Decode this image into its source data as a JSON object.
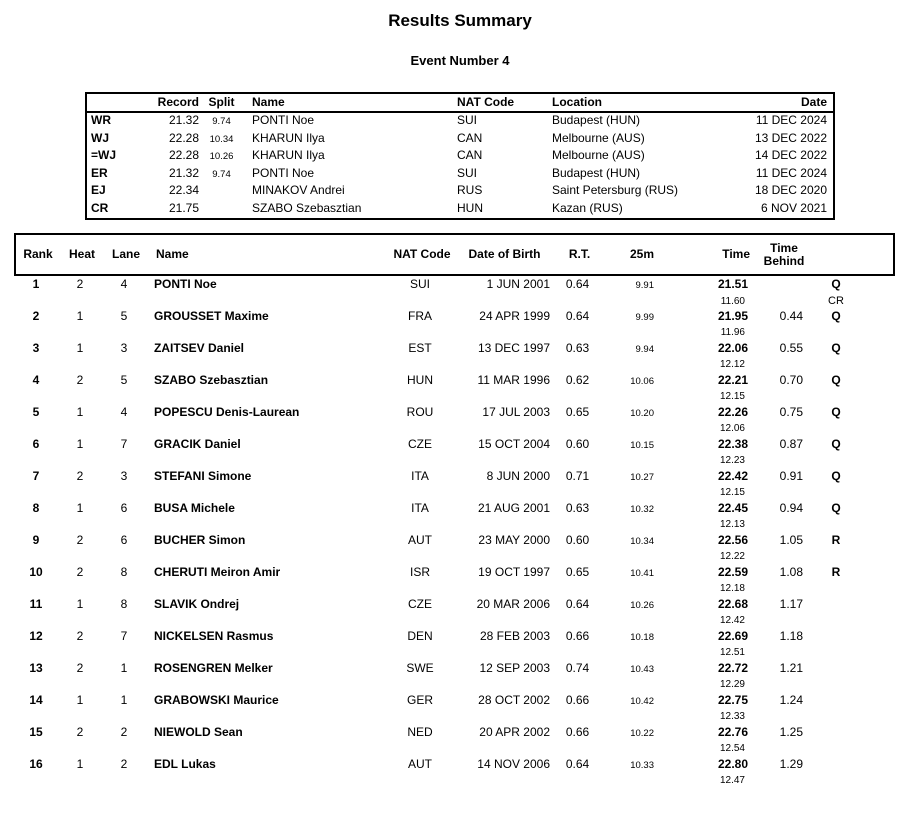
{
  "page": {
    "title": "Results Summary",
    "subtitle": "Event Number 4"
  },
  "colors": {
    "background": "#ffffff",
    "text": "#000000",
    "border": "#000000"
  },
  "records_table": {
    "headers": {
      "record": "Record",
      "split": "Split",
      "name": "Name",
      "nat_code": "NAT Code",
      "location": "Location",
      "date": "Date"
    },
    "rows": [
      {
        "tag": "WR",
        "record": "21.32",
        "split": "9.74",
        "name": "PONTI Noe",
        "nat": "SUI",
        "location": "Budapest (HUN)",
        "date": "11 DEC 2024"
      },
      {
        "tag": "WJ",
        "record": "22.28",
        "split": "10.34",
        "name": "KHARUN Ilya",
        "nat": "CAN",
        "location": "Melbourne (AUS)",
        "date": "13 DEC 2022"
      },
      {
        "tag": "=WJ",
        "record": "22.28",
        "split": "10.26",
        "name": "KHARUN Ilya",
        "nat": "CAN",
        "location": "Melbourne (AUS)",
        "date": "14 DEC 2022"
      },
      {
        "tag": "ER",
        "record": "21.32",
        "split": "9.74",
        "name": "PONTI Noe",
        "nat": "SUI",
        "location": "Budapest (HUN)",
        "date": "11 DEC 2024"
      },
      {
        "tag": "EJ",
        "record": "22.34",
        "split": "",
        "name": "MINAKOV Andrei",
        "nat": "RUS",
        "location": "Saint Petersburg (RUS)",
        "date": "18 DEC 2020"
      },
      {
        "tag": "CR",
        "record": "21.75",
        "split": "",
        "name": "SZABO Szebasztian",
        "nat": "HUN",
        "location": "Kazan (RUS)",
        "date": "6 NOV 2021"
      }
    ]
  },
  "results_table": {
    "headers": {
      "rank": "Rank",
      "heat": "Heat",
      "lane": "Lane",
      "name": "Name",
      "nat_code": "NAT Code",
      "date_of_birth": "Date of Birth",
      "reaction_time": "R.T.",
      "split_25m": "25m",
      "time": "Time",
      "time_behind": "Time Behind"
    },
    "rows": [
      {
        "rank": "1",
        "heat": "2",
        "lane": "4",
        "name": "PONTI Noe",
        "nat": "SUI",
        "dob": "1 JUN 2001",
        "rt": "0.64",
        "m25": "9.91",
        "time": "21.51",
        "split2": "11.60",
        "behind": "",
        "qual": "Q",
        "qual_note": "CR"
      },
      {
        "rank": "2",
        "heat": "1",
        "lane": "5",
        "name": "GROUSSET Maxime",
        "nat": "FRA",
        "dob": "24 APR 1999",
        "rt": "0.64",
        "m25": "9.99",
        "time": "21.95",
        "split2": "11.96",
        "behind": "0.44",
        "qual": "Q",
        "qual_note": ""
      },
      {
        "rank": "3",
        "heat": "1",
        "lane": "3",
        "name": "ZAITSEV Daniel",
        "nat": "EST",
        "dob": "13 DEC 1997",
        "rt": "0.63",
        "m25": "9.94",
        "time": "22.06",
        "split2": "12.12",
        "behind": "0.55",
        "qual": "Q",
        "qual_note": ""
      },
      {
        "rank": "4",
        "heat": "2",
        "lane": "5",
        "name": "SZABO Szebasztian",
        "nat": "HUN",
        "dob": "11 MAR 1996",
        "rt": "0.62",
        "m25": "10.06",
        "time": "22.21",
        "split2": "12.15",
        "behind": "0.70",
        "qual": "Q",
        "qual_note": ""
      },
      {
        "rank": "5",
        "heat": "1",
        "lane": "4",
        "name": "POPESCU Denis-Laurean",
        "nat": "ROU",
        "dob": "17 JUL 2003",
        "rt": "0.65",
        "m25": "10.20",
        "time": "22.26",
        "split2": "12.06",
        "behind": "0.75",
        "qual": "Q",
        "qual_note": ""
      },
      {
        "rank": "6",
        "heat": "1",
        "lane": "7",
        "name": "GRACIK Daniel",
        "nat": "CZE",
        "dob": "15 OCT 2004",
        "rt": "0.60",
        "m25": "10.15",
        "time": "22.38",
        "split2": "12.23",
        "behind": "0.87",
        "qual": "Q",
        "qual_note": ""
      },
      {
        "rank": "7",
        "heat": "2",
        "lane": "3",
        "name": "STEFANI Simone",
        "nat": "ITA",
        "dob": "8 JUN 2000",
        "rt": "0.71",
        "m25": "10.27",
        "time": "22.42",
        "split2": "12.15",
        "behind": "0.91",
        "qual": "Q",
        "qual_note": ""
      },
      {
        "rank": "8",
        "heat": "1",
        "lane": "6",
        "name": "BUSA Michele",
        "nat": "ITA",
        "dob": "21 AUG 2001",
        "rt": "0.63",
        "m25": "10.32",
        "time": "22.45",
        "split2": "12.13",
        "behind": "0.94",
        "qual": "Q",
        "qual_note": ""
      },
      {
        "rank": "9",
        "heat": "2",
        "lane": "6",
        "name": "BUCHER Simon",
        "nat": "AUT",
        "dob": "23 MAY 2000",
        "rt": "0.60",
        "m25": "10.34",
        "time": "22.56",
        "split2": "12.22",
        "behind": "1.05",
        "qual": "R",
        "qual_note": ""
      },
      {
        "rank": "10",
        "heat": "2",
        "lane": "8",
        "name": "CHERUTI Meiron Amir",
        "nat": "ISR",
        "dob": "19 OCT 1997",
        "rt": "0.65",
        "m25": "10.41",
        "time": "22.59",
        "split2": "12.18",
        "behind": "1.08",
        "qual": "R",
        "qual_note": ""
      },
      {
        "rank": "11",
        "heat": "1",
        "lane": "8",
        "name": "SLAVIK Ondrej",
        "nat": "CZE",
        "dob": "20 MAR 2006",
        "rt": "0.64",
        "m25": "10.26",
        "time": "22.68",
        "split2": "12.42",
        "behind": "1.17",
        "qual": "",
        "qual_note": ""
      },
      {
        "rank": "12",
        "heat": "2",
        "lane": "7",
        "name": "NICKELSEN Rasmus",
        "nat": "DEN",
        "dob": "28 FEB 2003",
        "rt": "0.66",
        "m25": "10.18",
        "time": "22.69",
        "split2": "12.51",
        "behind": "1.18",
        "qual": "",
        "qual_note": ""
      },
      {
        "rank": "13",
        "heat": "2",
        "lane": "1",
        "name": "ROSENGREN Melker",
        "nat": "SWE",
        "dob": "12 SEP 2003",
        "rt": "0.74",
        "m25": "10.43",
        "time": "22.72",
        "split2": "12.29",
        "behind": "1.21",
        "qual": "",
        "qual_note": ""
      },
      {
        "rank": "14",
        "heat": "1",
        "lane": "1",
        "name": "GRABOWSKI Maurice",
        "nat": "GER",
        "dob": "28 OCT 2002",
        "rt": "0.66",
        "m25": "10.42",
        "time": "22.75",
        "split2": "12.33",
        "behind": "1.24",
        "qual": "",
        "qual_note": ""
      },
      {
        "rank": "15",
        "heat": "2",
        "lane": "2",
        "name": "NIEWOLD Sean",
        "nat": "NED",
        "dob": "20 APR 2002",
        "rt": "0.66",
        "m25": "10.22",
        "time": "22.76",
        "split2": "12.54",
        "behind": "1.25",
        "qual": "",
        "qual_note": ""
      },
      {
        "rank": "16",
        "heat": "1",
        "lane": "2",
        "name": "EDL Lukas",
        "nat": "AUT",
        "dob": "14 NOV 2006",
        "rt": "0.64",
        "m25": "10.33",
        "time": "22.80",
        "split2": "12.47",
        "behind": "1.29",
        "qual": "",
        "qual_note": ""
      }
    ]
  }
}
